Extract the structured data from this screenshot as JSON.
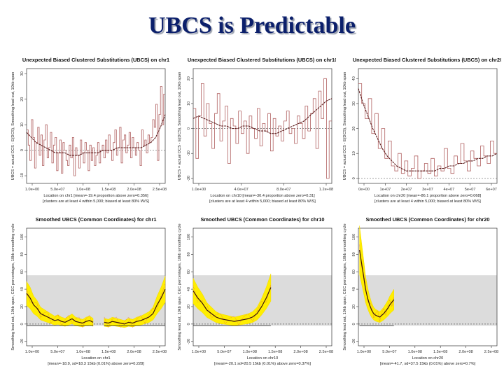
{
  "slide": {
    "title": "UBCS is Predictable"
  },
  "chart_data": [
    {
      "type": "line",
      "title": "Unexpected Biased Clustered Substitutions (UBCS) on chr1",
      "ylabel": "UBCS = actual DCS - E(DCS), Smoothing lead out, 10kb span",
      "xlabel_line1": "Location on chr1 [mean=-19.4 proportion above zero=0.356]",
      "xlabel_line2": "[clusters are at least 4 within 5,000; biased at least 80% W/S]",
      "xticks": [
        "1.0e+00",
        "5.0e+07",
        "1.0e+08",
        "1.5e+08",
        "2.0e+08",
        "2.5e+08"
      ],
      "yticks": [
        "-10",
        "0",
        "10",
        "20",
        "30"
      ],
      "xlim": [
        0,
        250
      ],
      "ylim": [
        -13,
        32
      ],
      "raw_values": [
        8,
        2,
        -4,
        12,
        5,
        -7,
        3,
        9,
        -2,
        6,
        -6,
        4,
        10,
        -3,
        1,
        7,
        -5,
        2,
        5,
        -8,
        -1,
        4,
        -9,
        3,
        0,
        -4,
        -6,
        2,
        -3,
        5,
        -10,
        1,
        -2,
        -7,
        4,
        -1,
        -5,
        3,
        0,
        -8,
        2,
        -4,
        1,
        -6,
        -2,
        3,
        -5,
        0,
        2,
        -3,
        4,
        -1,
        6,
        0,
        -4,
        3,
        8,
        -2,
        1,
        9,
        -5,
        4,
        6,
        -1,
        2,
        7,
        -3,
        5,
        1,
        -2,
        3,
        0,
        -6,
        8,
        2,
        4,
        -1,
        6,
        3,
        5,
        12,
        9,
        18,
        -4,
        14,
        25,
        10,
        22
      ],
      "smooth_values": [
        7,
        5,
        3,
        2,
        1,
        0,
        -1,
        -1,
        -1,
        -2,
        -2,
        -2,
        -1,
        -1,
        -1,
        -1,
        0,
        0,
        0,
        1,
        1,
        1,
        1,
        1,
        1,
        2,
        3,
        5,
        9,
        14
      ]
    },
    {
      "type": "line",
      "title": "Unexpected Biased Clustered Substitutions (UBCS) on chr10",
      "ylabel": "UBCS = actual DCS - E(DCS), Smoothing lead out, 10kb span",
      "xlabel_line1": "Location on chr10 [mean=-30.4 proportion above zero=0.31]",
      "xlabel_line2": "[clusters are at least 4 within 5,000; biased at least 80% W/S]",
      "xticks": [
        "1.0e+00",
        "4.0e+07",
        "8.0e+07",
        "1.2e+08"
      ],
      "yticks": [
        "-20",
        "-10",
        "0",
        "10",
        "20"
      ],
      "xlim": [
        0,
        135
      ],
      "ylim": [
        -22,
        24
      ],
      "raw_values": [
        8,
        -12,
        5,
        18,
        -3,
        10,
        2,
        -8,
        6,
        14,
        -5,
        3,
        9,
        -14,
        4,
        1,
        -6,
        7,
        -2,
        3,
        -10,
        5,
        0,
        -4,
        8,
        -7,
        2,
        -1,
        6,
        -9,
        4,
        -3,
        1,
        -5,
        3,
        7,
        -2,
        0,
        -6,
        5,
        2,
        -4,
        9,
        -1,
        6,
        12,
        -8,
        15,
        4,
        20,
        -20,
        3
      ],
      "smooth_values": [
        4,
        5,
        4,
        3,
        2,
        1,
        1,
        0,
        0,
        1,
        1,
        0,
        -1,
        -1,
        -2,
        -2,
        -1,
        0,
        1,
        2,
        3,
        5,
        7,
        9,
        11,
        12
      ]
    },
    {
      "type": "line",
      "title": "Unexpected Biased Clustered Substitutions (UBCS) on chr20",
      "ylabel": "UBCS = actual DCS - E(DCS), Smoothing lead out, 10kb span",
      "xlabel_line1": "Location on chr20 [mean=-86.1 proportion above zero=0.068]",
      "xlabel_line2": "[clusters are at least 4 within 5,000; biased at least 80% W/S]",
      "xticks": [
        "0e+00",
        "1e+07",
        "2e+07",
        "3e+07",
        "4e+07",
        "5e+07",
        "6e+07"
      ],
      "yticks": [
        "0",
        "10",
        "20",
        "30",
        "40"
      ],
      "xlim": [
        0,
        64
      ],
      "ylim": [
        -2,
        44
      ],
      "raw_values": [
        38,
        30,
        24,
        32,
        18,
        26,
        12,
        20,
        8,
        15,
        5,
        3,
        10,
        2,
        7,
        1,
        4,
        9,
        0,
        3,
        6,
        2,
        8,
        1,
        5,
        3,
        12,
        4,
        2,
        9,
        6,
        14,
        7,
        3,
        11,
        8,
        5,
        13,
        9,
        6,
        15,
        10
      ],
      "smooth_values": [
        36,
        30,
        25,
        20,
        16,
        12,
        9,
        7,
        5,
        4,
        3,
        3,
        3,
        3,
        3,
        3,
        3,
        4,
        4,
        5,
        5,
        6,
        6,
        7,
        7,
        8,
        8,
        9,
        9,
        10
      ]
    },
    {
      "type": "line",
      "title": "Smoothed UBCS (Common Coordinates) for chr1",
      "ylabel": "Smoothing lead out, 10kb span, CEC percentages, 10kb smoothing cycle",
      "xlabel_line1": "Location on chr1",
      "xlabel_line2": "[mean=-18.9, sd=18.3 15kb (0.01%) above zero=0.228]",
      "xticks": [
        "1.0e+00",
        "5.0e+07",
        "1.0e+08",
        "1.5e+08",
        "2.0e+08",
        "2.5e+08"
      ],
      "yticks": [
        "-20",
        "0",
        "20",
        "40",
        "60",
        "80",
        "100"
      ],
      "xlim": [
        0,
        250
      ],
      "ylim": [
        -25,
        110
      ],
      "band": [
        -2,
        56
      ],
      "segments": [
        {
          "x0": 0,
          "x1": 120,
          "values": [
            35,
            30,
            22,
            18,
            12,
            10,
            8,
            6,
            4,
            5,
            3,
            2,
            4,
            6,
            3,
            2,
            1,
            3,
            4,
            2
          ]
        },
        {
          "x0": 140,
          "x1": 250,
          "values": [
            2,
            1,
            3,
            2,
            1,
            0,
            2,
            1,
            3,
            4,
            6,
            8,
            12,
            22,
            30,
            40
          ]
        }
      ]
    },
    {
      "type": "line",
      "title": "Smoothed UBCS (Common Coordinates) for chr10",
      "ylabel": "Smoothing lead out, 10kb span, CEC percentages, 10kb smoothing cycle",
      "xlabel_line1": "Location on chr10",
      "xlabel_line2": "[mean=-20.1 sd=20.5 15kb (0.01%) above zero=0.37%]",
      "xticks": [
        "1.0e+00",
        "5.0e+07",
        "1.0e+08",
        "1.5e+08",
        "2.0e+08",
        "2.5e+08"
      ],
      "yticks": [
        "-20",
        "0",
        "20",
        "40",
        "60",
        "80",
        "100"
      ],
      "xlim": [
        0,
        250
      ],
      "ylim": [
        -25,
        110
      ],
      "band": [
        -2,
        56
      ],
      "segments": [
        {
          "x0": 0,
          "x1": 140,
          "values": [
            38,
            30,
            24,
            16,
            12,
            8,
            6,
            5,
            4,
            3,
            4,
            5,
            6,
            8,
            12,
            20,
            30,
            42
          ]
        }
      ]
    },
    {
      "type": "line",
      "title": "Smoothed UBCS (Common Coordinates) for chr20",
      "ylabel": "Smoothing lead out, 10kb span, CEC percentages, 10kb smoothing cycle",
      "xlabel_line1": "Location on chr20",
      "xlabel_line2": "[mean=-41.7, sd=37.5 15kb (0.01%) above zero=0.7%]",
      "xticks": [
        "1.0e+00",
        "5.0e+07",
        "1.0e+08",
        "1.5e+08",
        "2.0e+08",
        "2.5e+08"
      ],
      "yticks": [
        "-20",
        "0",
        "20",
        "40",
        "60",
        "80",
        "100"
      ],
      "xlim": [
        0,
        250
      ],
      "ylim": [
        -25,
        110
      ],
      "band": [
        -2,
        56
      ],
      "segments": [
        {
          "x0": 2,
          "x1": 64,
          "values": [
            85,
            70,
            55,
            40,
            30,
            22,
            16,
            12,
            10,
            9,
            8,
            10,
            12,
            15,
            18,
            22,
            25,
            28
          ]
        }
      ]
    }
  ]
}
